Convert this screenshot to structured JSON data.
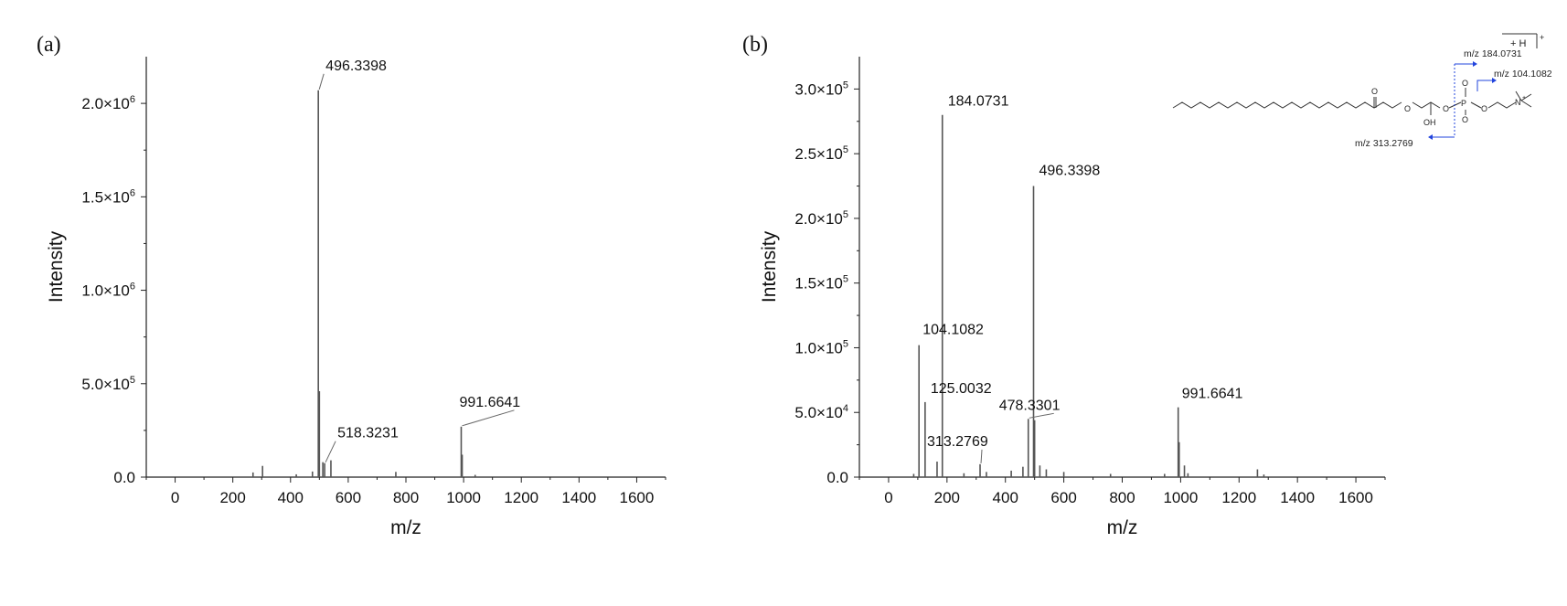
{
  "panels": {
    "a": {
      "letter": "(a)"
    },
    "b": {
      "letter": "(b)"
    }
  },
  "structure": {
    "label_313": "m/z 313.2769",
    "label_184": "m/z 184.0731",
    "label_104": "m/z 104.1082",
    "adduct": "+ H",
    "charge": "+",
    "oh": "OH",
    "o": "O",
    "p": "P",
    "n": "N"
  },
  "colors": {
    "spectrum": "#555555",
    "axis": "#222222",
    "fragment_arrow": "#2244dd",
    "leader": "#666666"
  },
  "chart_data": [
    {
      "type": "bar",
      "title": "",
      "xlabel": "m/z",
      "ylabel": "Intensity",
      "xlim": [
        -100,
        1700
      ],
      "ylim": [
        0,
        2250000
      ],
      "xticks": [
        0,
        200,
        400,
        600,
        800,
        1000,
        1200,
        1400,
        1600
      ],
      "xtick_labels": [
        "0",
        "200",
        "400",
        "600",
        "800",
        "1000",
        "1200",
        "1400",
        "1600"
      ],
      "yticks": [
        0,
        500000,
        1000000,
        1500000,
        2000000
      ],
      "ytick_labels": [
        {
          "mant": "0.0",
          "exp": ""
        },
        {
          "mant": "5.0×10",
          "exp": "5"
        },
        {
          "mant": "1.0×10",
          "exp": "6"
        },
        {
          "mant": "1.5×10",
          "exp": "6"
        },
        {
          "mant": "2.0×10",
          "exp": "6"
        }
      ],
      "peaks": [
        {
          "x": 270,
          "y": 25000
        },
        {
          "x": 303,
          "y": 60000
        },
        {
          "x": 420,
          "y": 15000
        },
        {
          "x": 476,
          "y": 30000
        },
        {
          "x": 496.3398,
          "y": 2070000
        },
        {
          "x": 500,
          "y": 460000
        },
        {
          "x": 512,
          "y": 80000
        },
        {
          "x": 518.3231,
          "y": 75000
        },
        {
          "x": 540,
          "y": 90000
        },
        {
          "x": 765,
          "y": 28000
        },
        {
          "x": 991.6641,
          "y": 270000
        },
        {
          "x": 995,
          "y": 120000
        },
        {
          "x": 1040,
          "y": 12000
        }
      ],
      "labels": [
        {
          "text": "496.3398",
          "x": 496.3398,
          "y": 2070000
        },
        {
          "text": "518.3231",
          "x": 518.3231,
          "y": 75000
        },
        {
          "text": "991.6641",
          "x": 991.6641,
          "y": 270000
        }
      ]
    },
    {
      "type": "bar",
      "title": "",
      "xlabel": "m/z",
      "ylabel": "Intensity",
      "xlim": [
        -100,
        1700
      ],
      "ylim": [
        0,
        325000
      ],
      "xticks": [
        0,
        200,
        400,
        600,
        800,
        1000,
        1200,
        1400,
        1600
      ],
      "xtick_labels": [
        "0",
        "200",
        "400",
        "600",
        "800",
        "1000",
        "1200",
        "1400",
        "1600"
      ],
      "yticks": [
        0,
        50000,
        100000,
        150000,
        200000,
        250000,
        300000
      ],
      "ytick_labels": [
        {
          "mant": "0.0",
          "exp": ""
        },
        {
          "mant": "5.0×10",
          "exp": "4"
        },
        {
          "mant": "1.0×10",
          "exp": "5"
        },
        {
          "mant": "1.5×10",
          "exp": "5"
        },
        {
          "mant": "2.0×10",
          "exp": "5"
        },
        {
          "mant": "2.5×10",
          "exp": "5"
        },
        {
          "mant": "3.0×10",
          "exp": "5"
        }
      ],
      "peaks": [
        {
          "x": 86,
          "y": 2500
        },
        {
          "x": 104.1082,
          "y": 102000
        },
        {
          "x": 125.0032,
          "y": 58000
        },
        {
          "x": 166,
          "y": 12000
        },
        {
          "x": 184.0731,
          "y": 280000
        },
        {
          "x": 258,
          "y": 3000
        },
        {
          "x": 313.2769,
          "y": 10000
        },
        {
          "x": 335,
          "y": 4000
        },
        {
          "x": 420,
          "y": 5000
        },
        {
          "x": 460,
          "y": 8000
        },
        {
          "x": 478.3301,
          "y": 45000
        },
        {
          "x": 496.3398,
          "y": 225000
        },
        {
          "x": 500,
          "y": 44000
        },
        {
          "x": 518,
          "y": 9000
        },
        {
          "x": 540,
          "y": 6000
        },
        {
          "x": 600,
          "y": 4000
        },
        {
          "x": 760,
          "y": 2500
        },
        {
          "x": 945,
          "y": 2500
        },
        {
          "x": 991.6641,
          "y": 54000
        },
        {
          "x": 995,
          "y": 27000
        },
        {
          "x": 1013,
          "y": 9000
        },
        {
          "x": 1025,
          "y": 3000
        },
        {
          "x": 1263,
          "y": 6000
        },
        {
          "x": 1285,
          "y": 2000
        }
      ],
      "labels": [
        {
          "text": "184.0731",
          "x": 184.0731,
          "y": 280000
        },
        {
          "text": "496.3398",
          "x": 496.3398,
          "y": 225000
        },
        {
          "text": "104.1082",
          "x": 104.1082,
          "y": 102000
        },
        {
          "text": "125.0032",
          "x": 125.0032,
          "y": 58000
        },
        {
          "text": "478.3301",
          "x": 478.3301,
          "y": 45000
        },
        {
          "text": "313.2769",
          "x": 313.2769,
          "y": 10000
        },
        {
          "text": "991.6641",
          "x": 991.6641,
          "y": 54000
        }
      ]
    }
  ]
}
